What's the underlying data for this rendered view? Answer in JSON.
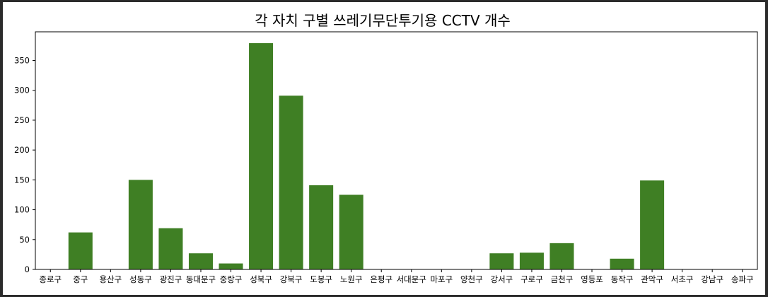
{
  "chart_data": {
    "type": "bar",
    "title": "각 자치 구별 쓰레기무단투기용 CCTV 개수",
    "xlabel": "",
    "ylabel": "",
    "categories": [
      "종로구",
      "중구",
      "용산구",
      "성동구",
      "광진구",
      "동대문구",
      "중랑구",
      "성북구",
      "강북구",
      "도봉구",
      "노원구",
      "은평구",
      "서대문구",
      "마포구",
      "양천구",
      "강서구",
      "구로구",
      "금천구",
      "영등포",
      "동작구",
      "관악구",
      "서초구",
      "강남구",
      "송파구"
    ],
    "values": [
      0,
      62,
      0,
      150,
      69,
      27,
      10,
      379,
      291,
      141,
      125,
      0,
      0,
      0,
      0,
      27,
      28,
      44,
      0,
      18,
      149,
      0,
      0,
      0
    ],
    "ylim": [
      0,
      398
    ],
    "yticks": [
      0,
      50,
      100,
      150,
      200,
      250,
      300,
      350
    ],
    "bar_color": "#3f7f24",
    "grid": false,
    "legend": "none"
  }
}
